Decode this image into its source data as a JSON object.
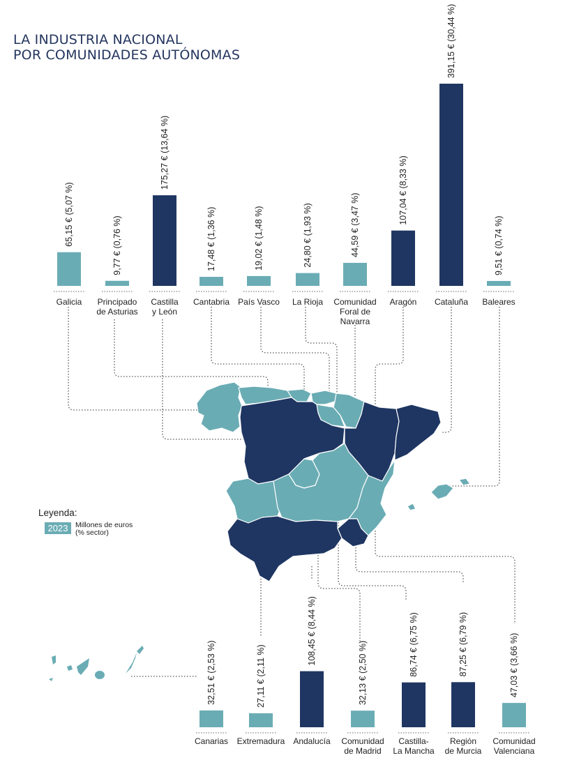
{
  "title": {
    "line1": "LA INDUSTRIA NACIONAL",
    "line2": "POR COMUNIDADES AUTÓNOMAS"
  },
  "legend": {
    "title": "Leyenda:",
    "year": "2023",
    "description_line1": "Millones de euros",
    "description_line2": "(% sector)"
  },
  "colors": {
    "high": "#1f3662",
    "low": "#6aacb4",
    "title": "#24355e"
  },
  "chart_data": {
    "type": "bar",
    "title": "LA INDUSTRIA NACIONAL POR COMUNIDADES AUTÓNOMAS",
    "unit": "Millones de euros (% sector)",
    "year": "2023",
    "series_groups": [
      {
        "name": "top",
        "items": [
          {
            "name": [
              "Galicia"
            ],
            "value": 65.15,
            "pct": 5.07,
            "label": "65,15 € (5,07 %)",
            "highlight": false
          },
          {
            "name": [
              "Principado",
              "de Asturias"
            ],
            "value": 9.77,
            "pct": 0.76,
            "label": "9,77 € (0,76 %)",
            "highlight": false
          },
          {
            "name": [
              "Castilla",
              "y León"
            ],
            "value": 175.27,
            "pct": 13.64,
            "label": "175,27 € (13,64 %)",
            "highlight": true
          },
          {
            "name": [
              "Cantabria"
            ],
            "value": 17.48,
            "pct": 1.36,
            "label": "17,48 € (1,36 %)",
            "highlight": false
          },
          {
            "name": [
              "País Vasco"
            ],
            "value": 19.02,
            "pct": 1.48,
            "label": "19,02 € (1,48 %)",
            "highlight": false
          },
          {
            "name": [
              "La Rioja"
            ],
            "value": 24.8,
            "pct": 1.93,
            "label": "24,80 € (1,93 %)",
            "highlight": false
          },
          {
            "name": [
              "Comunidad",
              "Foral de",
              "Navarra"
            ],
            "value": 44.59,
            "pct": 3.47,
            "label": "44,59 € (3,47 %)",
            "highlight": false
          },
          {
            "name": [
              "Aragón"
            ],
            "value": 107.04,
            "pct": 8.33,
            "label": "107,04 € (8,33 %)",
            "highlight": true
          },
          {
            "name": [
              "Cataluña"
            ],
            "value": 391.15,
            "pct": 30.44,
            "label": "391,15 € (30,44 %)",
            "highlight": true
          },
          {
            "name": [
              "Baleares"
            ],
            "value": 9.51,
            "pct": 0.74,
            "label": "9,51 € (0,74 %)",
            "highlight": false
          }
        ]
      },
      {
        "name": "bottom",
        "items": [
          {
            "name": [
              "Canarias"
            ],
            "value": 32.51,
            "pct": 2.53,
            "label": "32,51 € (2,53 %)",
            "highlight": false
          },
          {
            "name": [
              "Extremadura"
            ],
            "value": 27.11,
            "pct": 2.11,
            "label": "27,11 € (2,11 %)",
            "highlight": false
          },
          {
            "name": [
              "Andalucía"
            ],
            "value": 108.45,
            "pct": 8.44,
            "label": "108,45 € (8,44 %)",
            "highlight": true
          },
          {
            "name": [
              "Comunidad",
              "de Madrid"
            ],
            "value": 32.13,
            "pct": 2.5,
            "label": "32,13 € (2,50 %)",
            "highlight": false
          },
          {
            "name": [
              "Castilla-",
              "La Mancha"
            ],
            "value": 86.74,
            "pct": 6.75,
            "label": "86,74 € (6,75 %)",
            "highlight": true
          },
          {
            "name": [
              "Región",
              "de Murcia"
            ],
            "value": 87.25,
            "pct": 6.79,
            "label": "87,25 € (6,79 %)",
            "highlight": true
          },
          {
            "name": [
              "Comunidad",
              "Valenciana"
            ],
            "value": 47.03,
            "pct": 3.66,
            "label": "47,03 € (3,66  %)",
            "highlight": false
          }
        ]
      }
    ]
  }
}
